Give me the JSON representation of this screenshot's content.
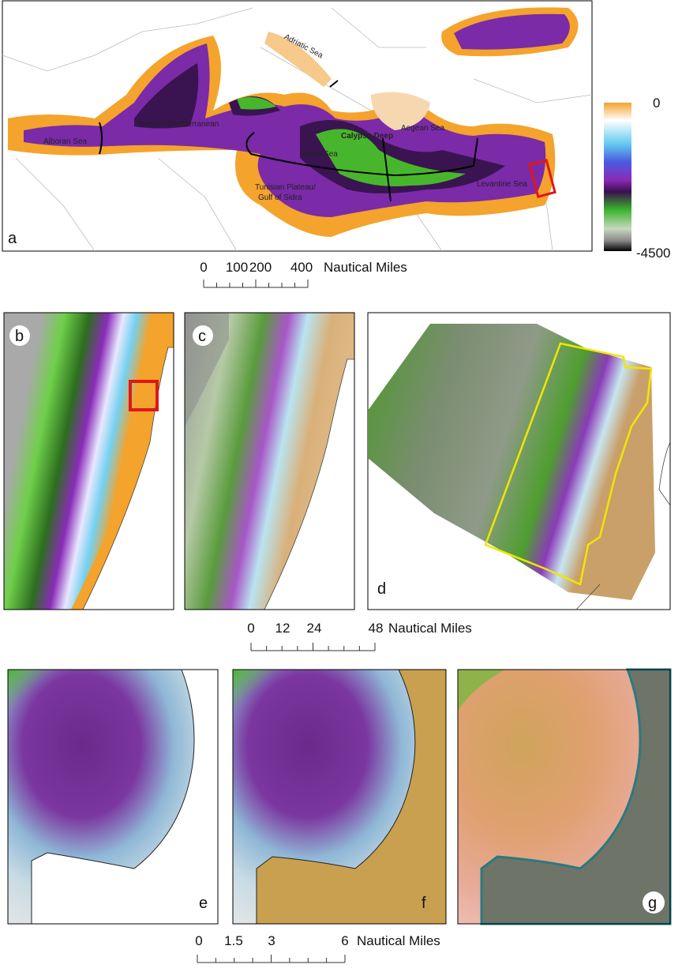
{
  "panel_a": {
    "letter": "a",
    "labels": [
      "Adriatic Sea",
      "Western Mediterranean",
      "Alboran Sea",
      "Calypso Deep",
      "Aegean Sea",
      "Ionian Sea",
      "Tunisian Plateau/",
      "Gulf of Sidra",
      "Levantine Sea"
    ],
    "colorbar": {
      "top_label": "0",
      "bottom_label": "-4500"
    }
  },
  "scale_bar_1": {
    "ticks": [
      "0",
      "100",
      "200",
      "400"
    ],
    "unit": "Nautical Miles"
  },
  "panels_bcd": {
    "letters": [
      "b",
      "c",
      "d"
    ]
  },
  "scale_bar_2": {
    "ticks": [
      "0",
      "12",
      "24",
      "48"
    ],
    "unit": "Nautical Miles"
  },
  "panels_efg": {
    "letters": [
      "e",
      "f",
      "g"
    ]
  },
  "scale_bar_3": {
    "ticks": [
      "0",
      "1.5",
      "3",
      "6"
    ],
    "unit": "Nautical Miles"
  }
}
